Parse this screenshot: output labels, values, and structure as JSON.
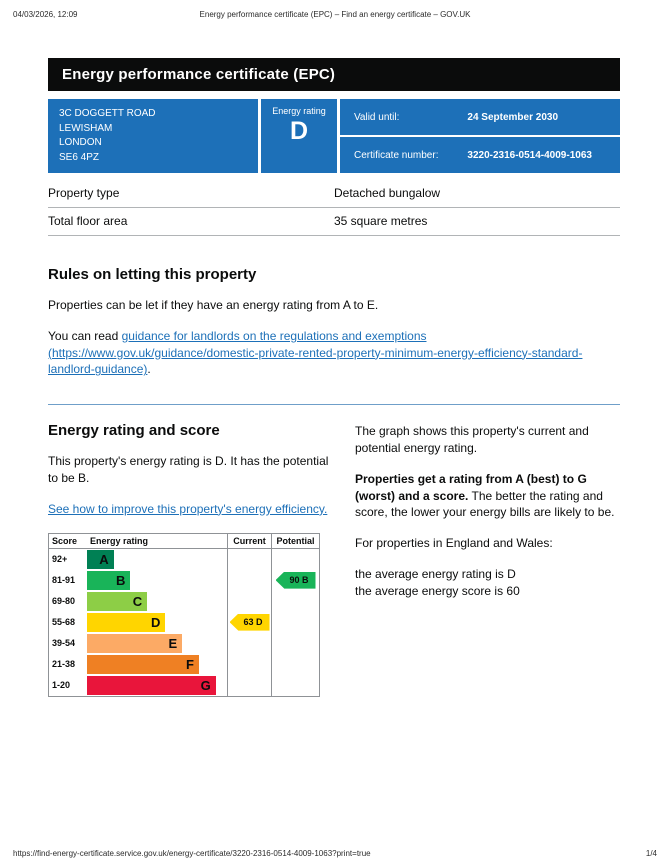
{
  "print_header": {
    "datetime": "04/03/2026, 12:09",
    "title": "Energy performance certificate (EPC) – Find an energy certificate – GOV.UK"
  },
  "banner": {
    "title": "Energy performance certificate (EPC)"
  },
  "summary": {
    "address_lines": [
      "3C DOGGETT ROAD",
      "LEWISHAM",
      "LONDON",
      "SE6 4PZ"
    ],
    "energy_rating_label": "Energy rating",
    "energy_rating": "D",
    "valid_until_label": "Valid until:",
    "valid_until": "24 September 2030",
    "certificate_number_label": "Certificate number:",
    "certificate_number": "3220-2316-0514-4009-1063",
    "panel_color": "#1d70b8"
  },
  "property_details": {
    "rows": [
      {
        "label": "Property type",
        "value": "Detached bungalow"
      },
      {
        "label": "Total floor area",
        "value": "35 square metres"
      }
    ]
  },
  "letting_rules": {
    "heading": "Rules on letting this property",
    "paragraph": "Properties can be let if they have an energy rating from A to E.",
    "you_can_read": "You can read ",
    "link_text": "guidance for landlords on the regulations and exemptions (https://www.gov.uk/guidance/domestic-private-rented-property-minimum-energy-efficiency-standard-landlord-guidance)",
    "period": "."
  },
  "rating_section": {
    "heading": "Energy rating and score",
    "paragraph": "This property's energy rating is D. It has the potential to be B.",
    "improve_link": "See how to improve this property's energy efficiency.",
    "right_para1": "The graph shows this property's current and potential energy rating.",
    "right_para2_bold": "Properties get a rating from A (best) to G (worst) and a score.",
    "right_para2_rest": " The better the rating and score, the lower your energy bills are likely to be.",
    "right_para3": "For properties in England and Wales:",
    "right_para4_line1": "the average energy rating is D",
    "right_para4_line2": "the average energy score is 60"
  },
  "chart_data": {
    "type": "epc-rating-chart",
    "headers": [
      "Score",
      "Energy rating",
      "Current",
      "Potential"
    ],
    "bands": [
      {
        "score": "92+",
        "letter": "A",
        "color": "#008054",
        "width_pct": 19
      },
      {
        "score": "81-91",
        "letter": "B",
        "color": "#19b459",
        "width_pct": 31
      },
      {
        "score": "69-80",
        "letter": "C",
        "color": "#8dce46",
        "width_pct": 43
      },
      {
        "score": "55-68",
        "letter": "D",
        "color": "#ffd500",
        "width_pct": 56
      },
      {
        "score": "39-54",
        "letter": "E",
        "color": "#fcaa65",
        "width_pct": 68
      },
      {
        "score": "21-38",
        "letter": "F",
        "color": "#ef8023",
        "width_pct": 80
      },
      {
        "score": "1-20",
        "letter": "G",
        "color": "#e9153b",
        "width_pct": 92
      }
    ],
    "current": {
      "value": 63,
      "letter": "D",
      "band_index": 3,
      "color": "#ffd500"
    },
    "potential": {
      "value": 90,
      "letter": "B",
      "band_index": 1,
      "color": "#19b459"
    }
  },
  "print_footer": {
    "url": "https://find-energy-certificate.service.gov.uk/energy-certificate/3220-2316-0514-4009-1063?print=true",
    "page": "1/4"
  }
}
